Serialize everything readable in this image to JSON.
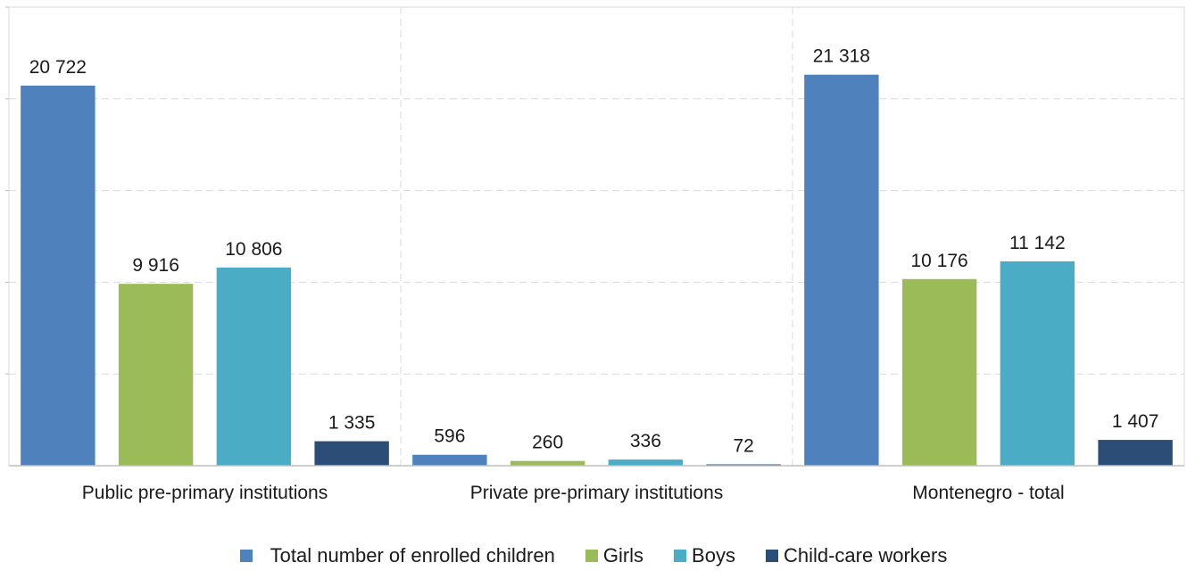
{
  "chart_data": {
    "type": "bar",
    "categories": [
      "Public pre-primary institutions",
      "Private pre-primary institutions",
      "Montenegro - total"
    ],
    "series": [
      {
        "name": "Total number of enrolled children",
        "color": "#4f81bd",
        "values": [
          20722,
          596,
          21318
        ],
        "labels": [
          "20 722",
          "596",
          "21 318"
        ]
      },
      {
        "name": "Girls",
        "color": "#9bbb59",
        "values": [
          9916,
          260,
          10176
        ],
        "labels": [
          "9 916",
          "260",
          "10 176"
        ]
      },
      {
        "name": "Boys",
        "color": "#4bacc6",
        "values": [
          10806,
          336,
          11142
        ],
        "labels": [
          "10 806",
          "336",
          "11 142"
        ]
      },
      {
        "name": "Child-care workers",
        "color": "#2c4d75",
        "values": [
          1335,
          72,
          1407
        ],
        "labels": [
          "1 335",
          "72",
          "1 407"
        ]
      }
    ],
    "ylim": [
      0,
      25000
    ],
    "gridlines": [
      5000,
      10000,
      15000,
      20000,
      25000
    ],
    "grid": true,
    "legend_position": "bottom"
  }
}
